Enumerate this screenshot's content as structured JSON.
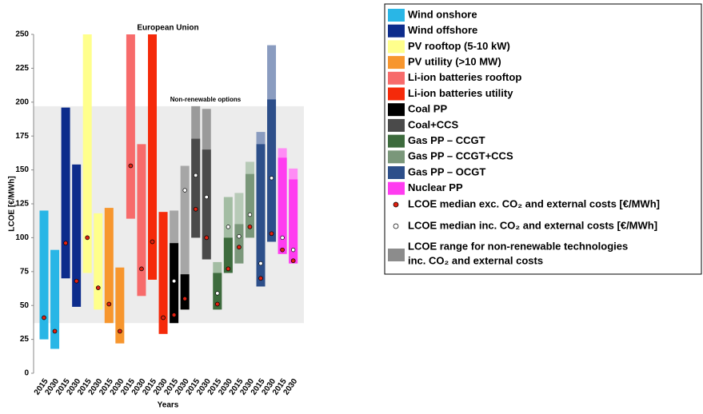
{
  "chart_data": {
    "type": "range-bar",
    "title": "European Union",
    "annotation": "Non-renewable options",
    "shaded_range": [
      37,
      197
    ],
    "y_label": "LCOE [€/MWh]",
    "x_label": "Years",
    "ylim": [
      0,
      250
    ],
    "yticks": [
      0,
      25,
      50,
      75,
      100,
      125,
      150,
      175,
      200,
      225,
      250
    ],
    "series": [
      {
        "name": "Wind onshore",
        "color": "#29b6e6",
        "years": [
          "2015",
          "2030"
        ],
        "low": [
          25,
          18
        ],
        "high": [
          120,
          91
        ],
        "median_exc": [
          41,
          31
        ]
      },
      {
        "name": "Wind offshore",
        "color": "#0d2c8c",
        "years": [
          "2015",
          "2030"
        ],
        "low": [
          70,
          49
        ],
        "high": [
          196,
          154
        ],
        "median_exc": [
          96,
          68
        ]
      },
      {
        "name": "PV rooftop (5-10 kW)",
        "color": "#ffff8c",
        "years": [
          "2015",
          "2030"
        ],
        "low": [
          74,
          47
        ],
        "high": [
          250,
          118
        ],
        "median_exc": [
          100,
          63
        ]
      },
      {
        "name": "PV utility (>10 MW)",
        "color": "#f7962e",
        "years": [
          "2015",
          "2030"
        ],
        "low": [
          37,
          22
        ],
        "high": [
          122,
          78
        ],
        "median_exc": [
          51,
          31
        ]
      },
      {
        "name": "Li-ion batteries rooftop",
        "color": "#f76b6b",
        "years": [
          "2015",
          "2030"
        ],
        "low": [
          114,
          57
        ],
        "high": [
          250,
          169
        ],
        "median_exc": [
          153,
          77
        ]
      },
      {
        "name": "Li-ion batteries utility",
        "color": "#f52a0a",
        "years": [
          "2015",
          "2030"
        ],
        "low": [
          69,
          29
        ],
        "high": [
          250,
          119
        ],
        "median_exc": [
          97,
          41
        ]
      },
      {
        "name": "Coal PP",
        "color": "#000000",
        "color_inc": "#a6a6a6",
        "years": [
          "2015",
          "2030"
        ],
        "low": [
          37,
          47
        ],
        "high": [
          96,
          73
        ],
        "high_inc": [
          120,
          153
        ],
        "median_exc": [
          43,
          55
        ],
        "median_inc": [
          68,
          135
        ]
      },
      {
        "name": "Coal+CCS",
        "color": "#4a4a4a",
        "color_inc": "#9a9a9a",
        "years": [
          "2015",
          "2030"
        ],
        "low": [
          100,
          84
        ],
        "high": [
          173,
          165
        ],
        "high_inc": [
          197,
          195
        ],
        "median_exc": [
          121,
          100
        ],
        "median_inc": [
          146,
          130
        ]
      },
      {
        "name": "Gas PP – CCGT",
        "color": "#3d6b3d",
        "color_inc": "#a3bda3",
        "years": [
          "2015",
          "2030"
        ],
        "low": [
          47,
          74
        ],
        "high": [
          74,
          100
        ],
        "high_inc": [
          82,
          130
        ],
        "median_exc": [
          51,
          77
        ],
        "median_inc": [
          59,
          108
        ]
      },
      {
        "name": "Gas PP – CCGT+CCS",
        "color": "#7a977a",
        "color_inc": "#b7cab7",
        "years": [
          "2015",
          "2030"
        ],
        "low": [
          81,
          100
        ],
        "high": [
          110,
          147
        ],
        "high_inc": [
          133,
          156
        ],
        "median_exc": [
          93,
          108
        ],
        "median_inc": [
          101,
          117
        ]
      },
      {
        "name": "Gas PP – OCGT",
        "color": "#2d4f8a",
        "color_inc": "#8a9cc0",
        "years": [
          "2015",
          "2030"
        ],
        "low": [
          64,
          97
        ],
        "high": [
          169,
          202
        ],
        "high_inc": [
          178,
          242
        ],
        "median_exc": [
          70,
          103
        ],
        "median_inc": [
          81,
          144
        ]
      },
      {
        "name": "Nuclear PP",
        "color": "#ff3cf0",
        "color_inc": "#ff8cf5",
        "years": [
          "2015",
          "2030"
        ],
        "low": [
          88,
          81
        ],
        "high": [
          159,
          143
        ],
        "high_inc": [
          166,
          151
        ],
        "median_exc": [
          91,
          83
        ],
        "median_inc": [
          100,
          91
        ]
      }
    ],
    "legend_markers": {
      "median_exc": "LCOE median exc. CO₂ and external costs [€/MWh]",
      "median_inc": "LCOE median inc. CO₂ and external costs [€/MWh]",
      "range_inc": [
        "LCOE range for non-renewable technologies",
        "inc. CO₂ and external  costs"
      ]
    }
  }
}
